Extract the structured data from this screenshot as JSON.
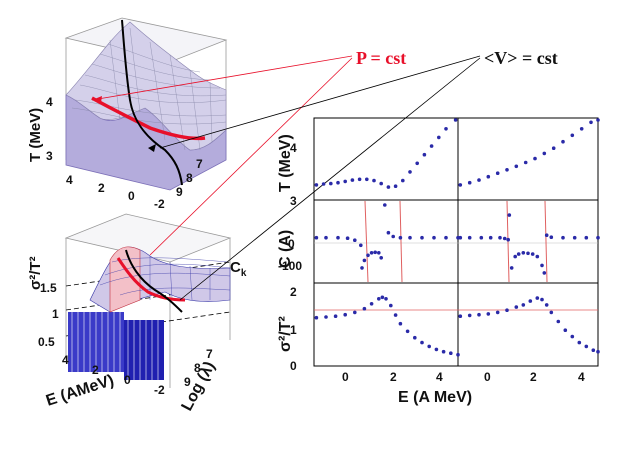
{
  "annotations": {
    "p_label": "P = cst",
    "v_label": "<V> = cst",
    "ck_label": "C",
    "ck_sub": "k"
  },
  "colors": {
    "red": "#e8102a",
    "blue": "#2a2aa8",
    "surface": "#b8b0e0",
    "thin_red": "#e06060"
  },
  "chart_data": [
    {
      "type": "surface3d",
      "name": "temperature-surface",
      "zlabel": "T (MeV)",
      "z_ticks": [
        "4",
        "3"
      ],
      "x_ticks": [
        "4",
        "2",
        "0",
        "-2"
      ],
      "y_ticks": [
        "7",
        "8",
        "9"
      ]
    },
    {
      "type": "surface3d",
      "name": "fluctuation-surface",
      "zlabel_main": "σ²/T²",
      "z_ticks": [
        "1.5",
        "1",
        "0.5"
      ],
      "x_ticks": [
        "4",
        "2",
        "0",
        "-2"
      ],
      "y_ticks": [
        "7",
        "8",
        "9"
      ],
      "xlabel": "E (AMeV)",
      "ylabel": "Log (λ)"
    },
    {
      "type": "scatter",
      "name": "right-panels",
      "xlabel": "E (A MeV)",
      "x_ticks": [
        "0",
        "2",
        "4"
      ],
      "xlim": [
        -1,
        5
      ],
      "rows": [
        {
          "ylabel": "T (MeV)",
          "y_ticks": [
            "4",
            "3"
          ],
          "ylim": [
            2.9,
            4.8
          ],
          "left": [
            [
              -0.9,
              3.25
            ],
            [
              -0.6,
              3.27
            ],
            [
              -0.3,
              3.28
            ],
            [
              0.0,
              3.3
            ],
            [
              0.3,
              3.33
            ],
            [
              0.6,
              3.36
            ],
            [
              0.9,
              3.38
            ],
            [
              1.2,
              3.38
            ],
            [
              1.5,
              3.35
            ],
            [
              1.8,
              3.28
            ],
            [
              2.1,
              3.2
            ],
            [
              2.4,
              3.22
            ],
            [
              2.7,
              3.35
            ],
            [
              3.0,
              3.55
            ],
            [
              3.3,
              3.75
            ],
            [
              3.6,
              3.95
            ],
            [
              3.9,
              4.15
            ],
            [
              4.2,
              4.35
            ],
            [
              4.5,
              4.55
            ],
            [
              4.9,
              4.78
            ]
          ],
          "right": [
            [
              -0.9,
              3.25
            ],
            [
              -0.5,
              3.3
            ],
            [
              -0.1,
              3.36
            ],
            [
              0.3,
              3.44
            ],
            [
              0.7,
              3.52
            ],
            [
              1.1,
              3.6
            ],
            [
              1.5,
              3.68
            ],
            [
              1.9,
              3.77
            ],
            [
              2.3,
              3.86
            ],
            [
              2.7,
              3.98
            ],
            [
              3.1,
              4.1
            ],
            [
              3.5,
              4.25
            ],
            [
              3.9,
              4.4
            ],
            [
              4.3,
              4.55
            ],
            [
              4.7,
              4.7
            ],
            [
              5.0,
              4.82
            ]
          ]
        },
        {
          "ylabel": "C (A)",
          "y_ticks": [
            "0",
            "-100"
          ],
          "ylim": [
            -180,
            150
          ],
          "left": [
            [
              -0.9,
              0
            ],
            [
              -0.5,
              0
            ],
            [
              0.0,
              0
            ],
            [
              0.4,
              -2
            ],
            [
              0.7,
              -10
            ],
            [
              0.95,
              -30
            ],
            [
              1.0,
              -120
            ],
            [
              1.1,
              -90
            ],
            [
              1.25,
              -70
            ],
            [
              1.4,
              -60
            ],
            [
              1.55,
              -58
            ],
            [
              1.7,
              -60
            ],
            [
              1.8,
              -80
            ],
            [
              1.95,
              130
            ],
            [
              2.1,
              20
            ],
            [
              2.3,
              5
            ],
            [
              2.6,
              0
            ],
            [
              3.0,
              0
            ],
            [
              3.5,
              0
            ],
            [
              4.0,
              0
            ],
            [
              4.5,
              0
            ],
            [
              5.0,
              0
            ]
          ],
          "right": [
            [
              -0.9,
              0
            ],
            [
              -0.5,
              0
            ],
            [
              0.0,
              0
            ],
            [
              0.4,
              0
            ],
            [
              0.8,
              0
            ],
            [
              1.0,
              -3
            ],
            [
              1.15,
              -8
            ],
            [
              1.2,
              90
            ],
            [
              1.3,
              -120
            ],
            [
              1.45,
              -75
            ],
            [
              1.6,
              -65
            ],
            [
              1.8,
              -60
            ],
            [
              2.0,
              -62
            ],
            [
              2.2,
              -65
            ],
            [
              2.4,
              -75
            ],
            [
              2.6,
              -110
            ],
            [
              2.7,
              -140
            ],
            [
              2.8,
              10
            ],
            [
              3.0,
              2
            ],
            [
              3.5,
              0
            ],
            [
              4.0,
              0
            ],
            [
              4.5,
              0
            ],
            [
              5.0,
              0
            ]
          ]
        },
        {
          "ylabel": "σ²/T²",
          "y_ticks": [
            "2",
            "1",
            "0"
          ],
          "ylim": [
            0,
            2.2
          ],
          "left": [
            [
              -0.9,
              1.28
            ],
            [
              -0.5,
              1.3
            ],
            [
              -0.1,
              1.32
            ],
            [
              0.3,
              1.36
            ],
            [
              0.7,
              1.42
            ],
            [
              1.1,
              1.52
            ],
            [
              1.4,
              1.65
            ],
            [
              1.7,
              1.78
            ],
            [
              1.85,
              1.82
            ],
            [
              2.0,
              1.78
            ],
            [
              2.2,
              1.6
            ],
            [
              2.4,
              1.35
            ],
            [
              2.6,
              1.12
            ],
            [
              2.9,
              0.92
            ],
            [
              3.2,
              0.75
            ],
            [
              3.5,
              0.62
            ],
            [
              3.8,
              0.52
            ],
            [
              4.1,
              0.44
            ],
            [
              4.4,
              0.38
            ],
            [
              4.7,
              0.34
            ],
            [
              5.0,
              0.3
            ]
          ],
          "right": [
            [
              -0.9,
              1.32
            ],
            [
              -0.5,
              1.34
            ],
            [
              -0.1,
              1.36
            ],
            [
              0.3,
              1.38
            ],
            [
              0.7,
              1.42
            ],
            [
              1.1,
              1.48
            ],
            [
              1.5,
              1.56
            ],
            [
              1.8,
              1.62
            ],
            [
              2.1,
              1.72
            ],
            [
              2.4,
              1.8
            ],
            [
              2.6,
              1.76
            ],
            [
              2.8,
              1.62
            ],
            [
              3.0,
              1.42
            ],
            [
              3.3,
              1.18
            ],
            [
              3.6,
              0.95
            ],
            [
              3.9,
              0.78
            ],
            [
              4.2,
              0.62
            ],
            [
              4.5,
              0.52
            ],
            [
              4.8,
              0.42
            ],
            [
              5.0,
              0.38
            ]
          ]
        }
      ]
    }
  ]
}
